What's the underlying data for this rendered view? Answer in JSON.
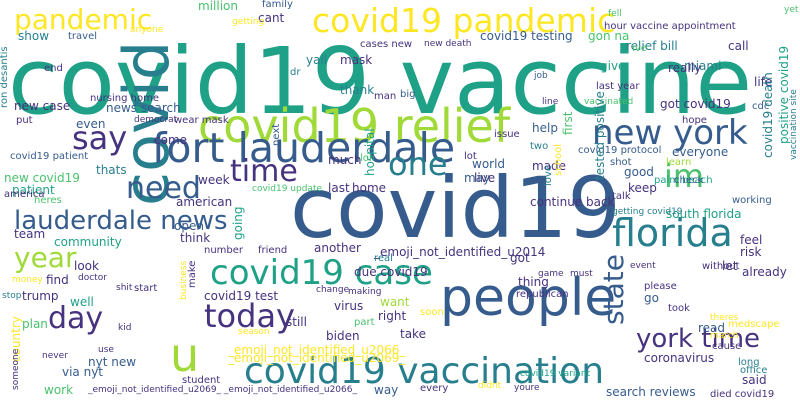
{
  "colors": {
    "background": "#ffffff",
    "palette": [
      "#440154",
      "#46327e",
      "#365c8d",
      "#277f8e",
      "#1fa187",
      "#4ac16d",
      "#a0da39",
      "#fde725"
    ]
  },
  "words": [
    "covid19 vaccine",
    "covid19",
    "covid",
    "covid19 relief",
    "fort lauderdale",
    "people",
    "covid19 pandemic",
    "new york",
    "covid19 vaccination",
    "lauderdale news",
    "covid19 case",
    "florida",
    "today",
    "one",
    "say",
    "pandemic",
    "state",
    "time",
    "york time",
    "need",
    "day",
    "year",
    "im",
    "u",
    "million",
    "family",
    "cant",
    "getting",
    "fell",
    "relief bill",
    "call",
    "hour vaccine appointment",
    "yet",
    "ron desantis",
    "show",
    "travel",
    "anyone",
    "end",
    "yall",
    "mask",
    "covid19 testing",
    "gon na",
    "miami",
    "really",
    "give",
    "life",
    "ive",
    "cdc",
    "dr",
    "cases new",
    "new death",
    "vaccinated",
    "thank",
    "new case",
    "nursing home",
    "news search",
    "even",
    "democrat",
    "wear mask",
    "big",
    "got covid19",
    "man",
    "job",
    "line",
    "last year",
    "hope",
    "hospital",
    "covid19 death",
    "positive covid19",
    "vaccination site",
    "put",
    "next",
    "issue",
    "come",
    "help",
    "first",
    "two",
    "covid19 protocol",
    "covid19 patient",
    "lol",
    "lot",
    "shot",
    "learn",
    "everyone",
    "thats",
    "covid19 update",
    "much",
    "world",
    "made",
    "good",
    "palm beach",
    "check",
    "new covid19",
    "week",
    "live",
    "may",
    "keep",
    "patient",
    "american",
    "last",
    "home",
    "tested positive",
    "continue back",
    "working",
    "south florida",
    "america",
    "heres",
    "school",
    "love",
    "talk",
    "getting covid19",
    "team",
    "open",
    "another",
    "_emoji_not_identified_u2014",
    "community",
    "think",
    "going",
    "friend",
    "got",
    "look",
    "find",
    "start",
    "number",
    "real",
    "due covid19",
    "thing",
    "feel",
    "risk",
    "money",
    "doctor",
    "covid19 test",
    "let",
    "trump",
    "game",
    "must",
    "event",
    "well",
    "without",
    "please",
    "already",
    "stop",
    "shit",
    "make",
    "virus",
    "change",
    "making",
    "want",
    "republican",
    "go",
    "took",
    "plan",
    "biden",
    "still",
    "part",
    "right",
    "soon",
    "read",
    "theres",
    "medscape",
    "country",
    "kid",
    "business",
    "season",
    "take",
    "march",
    "cause",
    "_emoji_not_identified_u2066_",
    "_emoji_not_identified_u2069_",
    "coronavirus",
    "long",
    "office",
    "never",
    "use",
    "said",
    "someone",
    "via nyt",
    "nyt new",
    "student",
    "didnt",
    "youre",
    "work",
    "way",
    "search reviews",
    "covid19 variant",
    "_emoji_not_identified_u2069_ _emoji_not_identified_u2066_",
    "every",
    "died covid19"
  ]
}
